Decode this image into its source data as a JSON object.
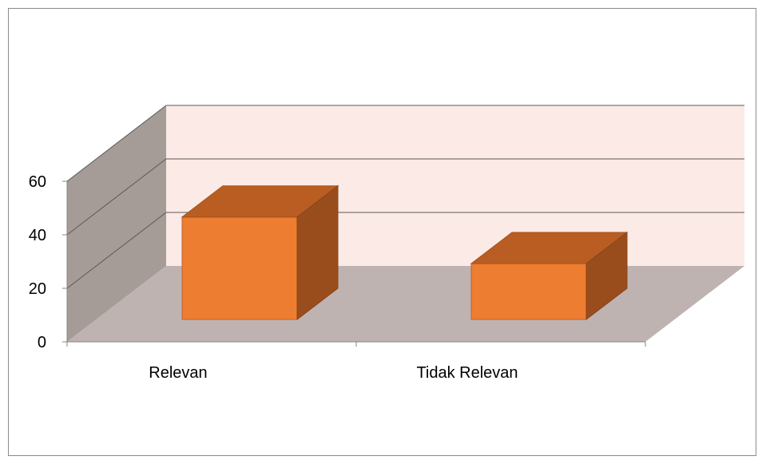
{
  "chart_data": {
    "type": "bar",
    "style": "3d-column",
    "title": "",
    "xlabel": "",
    "ylabel": "",
    "categories": [
      "Relevan",
      "Tidak Relevan"
    ],
    "values": [
      44,
      24
    ],
    "ylim": [
      0,
      60
    ],
    "y_ticks": [
      "0",
      "20",
      "40",
      "60"
    ],
    "grid": true,
    "legend": "none",
    "colors": {
      "bar_front": "#ED7D31",
      "bar_top": "#BA5D22",
      "bar_side": "#9A4D1C",
      "back_wall": "#FBEAE6",
      "side_wall": "#A59C98",
      "floor": "#BFB3B2",
      "gridline": "#595959"
    }
  }
}
